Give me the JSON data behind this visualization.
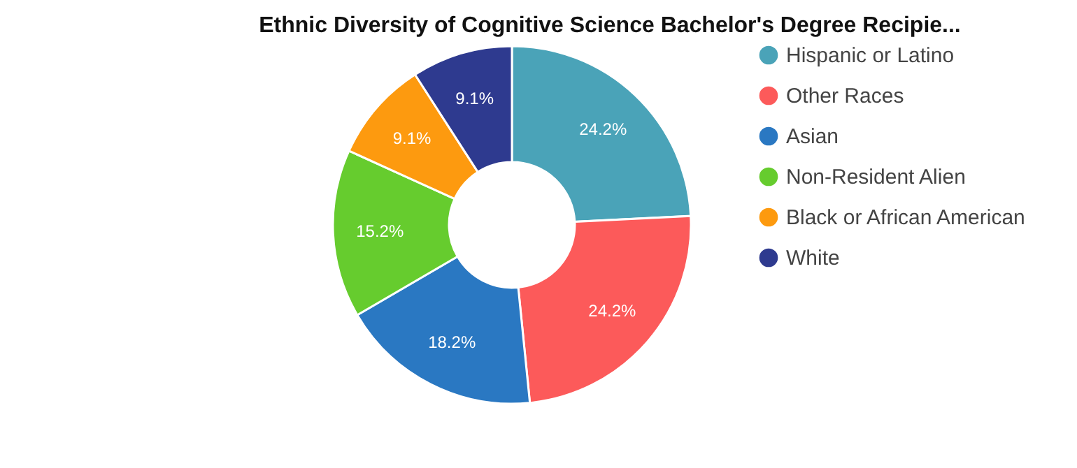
{
  "chart_data": {
    "type": "donut",
    "title": "Ethnic Diversity of Cognitive Science Bachelor's Degree Recipie...",
    "categories": [
      "Hispanic or Latino",
      "Other Races",
      "Asian",
      "Non-Resident Alien",
      "Black or African American",
      "White"
    ],
    "values": [
      24.2,
      24.2,
      18.2,
      15.2,
      9.1,
      9.1
    ],
    "colors": [
      "#4aa3b8",
      "#fc5a5a",
      "#2a78c2",
      "#66cc2e",
      "#fd9a0f",
      "#2e3a8f"
    ],
    "value_labels": [
      "24.2%",
      "24.2%",
      "18.2%",
      "15.2%",
      "9.1%",
      "9.1%"
    ],
    "legend": "right"
  }
}
